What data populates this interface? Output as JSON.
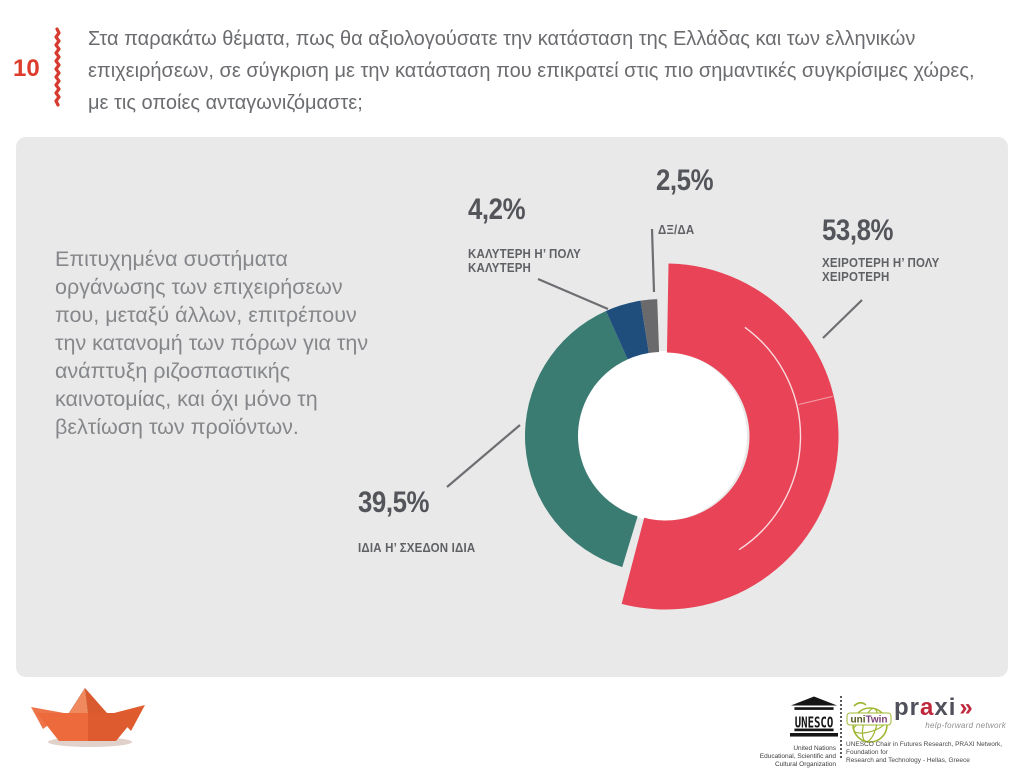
{
  "slide": {
    "number": "10",
    "question": "Στα παρακάτω θέματα, πως θα αξιολογούσατε την κατάσταση της Ελλάδας και των ελληνικών\nεπιχειρήσεων, σε σύγκριση με την κατάσταση που επικρατεί στις πιο σημαντικές συγκρίσιμες χώρες,\nμε τις οποίες ανταγωνιζόμαστε;"
  },
  "card": {
    "description": "Επιτυχημένα συστήματα\nοργάνωσης των επιχειρήσεων\nπου, μεταξύ άλλων, επιτρέπουν\nτην κατανομή των πόρων για την\nανάπτυξη ριζοσπαστικής\nκαινοτομίας, και όχι μόνο τη\nβελτίωση των προϊόντων."
  },
  "chart_data": {
    "type": "pie",
    "donut": true,
    "unit": "%",
    "start_angle_deg": 0,
    "direction": "clockwise",
    "legend_position": "callouts",
    "segments": [
      {
        "label": "ΧΕΙΡΟΤΕΡΗ Η’ ΠΟΛΥ ΧΕΙΡΟΤΕΡΗ",
        "value": 53.8,
        "display": "53,8%",
        "callout_label": "ΧΕΙΡΟΤΕΡΗ Η’ ΠΟΛΥ\nΧΕΙΡΟΤΕΡΗ",
        "color": "#e84356",
        "emphasis": true
      },
      {
        "label": "ΙΔΙΑ Η’ ΣΧΕΔΟΝ ΙΔΙΑ",
        "value": 39.5,
        "display": "39,5%",
        "callout_label": "ΙΔΙΑ Η’ ΣΧΕΔΟΝ ΙΔΙΑ",
        "color": "#3b7c72",
        "emphasis": false
      },
      {
        "label": "ΚΑΛΥΤΕΡΗ Η’ ΠΟΛΥ ΚΑΛΥΤΕΡΗ",
        "value": 4.2,
        "display": "4,2%",
        "callout_label": "ΚΑΛΥΤΕΡΗ Η’ ΠΟΛΥ\nΚΑΛΥΤΕΡΗ",
        "color": "#1f4e7d",
        "emphasis": false
      },
      {
        "label": "ΔΞ/ΔΑ",
        "value": 2.5,
        "display": "2,5%",
        "callout_label": "ΔΞ/ΔΑ",
        "color": "#6a6a6d",
        "emphasis": false
      }
    ]
  },
  "footer": {
    "unesco": {
      "temple_text": "UNESCO",
      "caption": "United Nations\nEducational, Scientific and\nCultural Organization"
    },
    "unitwin": {
      "uni": "uni",
      "twin": "Twin"
    },
    "praxi": {
      "p1": "pr",
      "a": "a",
      "p2": "xi",
      "chevrons": "»",
      "tagline": "help-forward network"
    },
    "chair_caption": "UNESCO Chair in Futures Research, PRAXI Network, Foundation for\nResearch and Technology - Hellas, Greece"
  },
  "colors": {
    "accent_red": "#dd3b2b",
    "segment_worse": "#e84356",
    "segment_same": "#3b7c72",
    "segment_better": "#1f4e7d",
    "segment_dk": "#6a6a6d",
    "card_bg": "#e9e9e9",
    "text_dark": "#54555a",
    "text_gray": "#85878a",
    "leader_line": "#6d6e71",
    "praxi_red": "#c0273c",
    "unitwin_green": "#9fb832"
  }
}
